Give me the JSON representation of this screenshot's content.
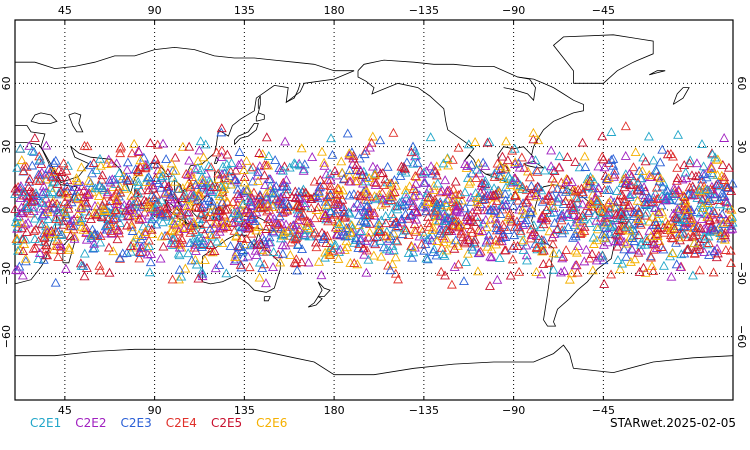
{
  "map": {
    "lon_top_labels": [
      "45",
      "90",
      "135",
      "180",
      "−135",
      "−90",
      "−45"
    ],
    "lon_bottom_labels": [
      "45",
      "90",
      "135",
      "180",
      "−135",
      "−90",
      "−45"
    ],
    "lat_left_labels": [
      "60",
      "30",
      "0",
      "−30",
      "−60"
    ],
    "lat_right_labels": [
      "60",
      "30",
      "0",
      "−30",
      "−60"
    ],
    "projection": "cylindrical",
    "grid": true,
    "grid_style": "dotted",
    "marker": "triangle-outline"
  },
  "legend": [
    {
      "label": "C2E1",
      "color": "#21a6c9"
    },
    {
      "label": "C2E2",
      "color": "#a020c0"
    },
    {
      "label": "C2E3",
      "color": "#2a5fd6"
    },
    {
      "label": "C2E4",
      "color": "#e0302a"
    },
    {
      "label": "C2E5",
      "color": "#c8102e"
    },
    {
      "label": "C2E6",
      "color": "#f5b000"
    }
  ],
  "footer": {
    "label": "STARwet.2025-02-05"
  },
  "colors": {
    "coast": "#000000",
    "grid": "#000000",
    "frame": "#000000"
  }
}
